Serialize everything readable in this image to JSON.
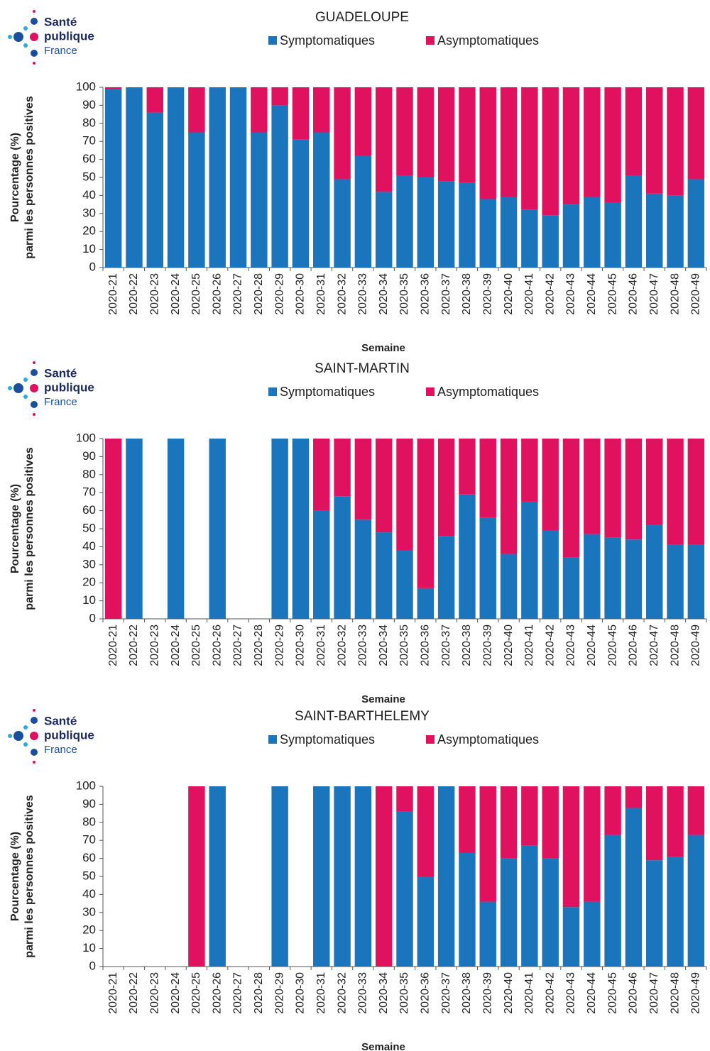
{
  "chart_data": [
    {
      "type": "bar",
      "stacked": true,
      "title": "GUADELOUPE",
      "logo": [
        "Santé",
        "publique",
        "France"
      ],
      "y_label": [
        "Pourcentage (%)",
        "parmi les  personnes positives"
      ],
      "x_label": "Semaine",
      "categories": [
        "2020-21",
        "2020-22",
        "2020-23",
        "2020-24",
        "2020-25",
        "2020-26",
        "2020-27",
        "2020-28",
        "2020-29",
        "2020-30",
        "2020-31",
        "2020-32",
        "2020-33",
        "2020-34",
        "2020-35",
        "2020-36",
        "2020-37",
        "2020-38",
        "2020-39",
        "2020-40",
        "2020-41",
        "2020-42",
        "2020-43",
        "2020-44",
        "2020-45",
        "2020-46",
        "2020-47",
        "2020-48",
        "2020-49"
      ],
      "series": [
        {
          "name": "Symptomatiques",
          "color": "#1b75bc",
          "values": [
            99,
            100,
            86,
            100,
            75,
            100,
            100,
            75,
            90,
            71,
            75,
            49,
            62,
            42,
            51,
            50,
            48,
            47,
            38,
            39,
            32,
            29,
            35,
            39,
            36,
            51,
            41,
            40,
            49
          ]
        },
        {
          "name": "Asymptomatiques",
          "color": "#e0115f",
          "values": [
            1,
            0,
            14,
            0,
            25,
            0,
            0,
            25,
            10,
            29,
            25,
            51,
            38,
            58,
            49,
            50,
            52,
            53,
            62,
            61,
            68,
            71,
            65,
            61,
            64,
            49,
            59,
            60,
            51
          ]
        }
      ],
      "ylim": [
        0,
        100
      ],
      "yticks": [
        0,
        10,
        20,
        30,
        40,
        50,
        60,
        70,
        80,
        90,
        100
      ],
      "grid": false
    },
    {
      "type": "bar",
      "stacked": true,
      "title": "SAINT-MARTIN",
      "logo": [
        "Santé",
        "publique",
        "France"
      ],
      "y_label": [
        "Pourcentage (%)",
        "parmi les  personnes positives"
      ],
      "x_label": "Semaine",
      "categories": [
        "2020-21",
        "2020-22",
        "2020-23",
        "2020-24",
        "2020-25",
        "2020-26",
        "2020-27",
        "2020-28",
        "2020-29",
        "2020-30",
        "2020-31",
        "2020-32",
        "2020-33",
        "2020-34",
        "2020-35",
        "2020-36",
        "2020-37",
        "2020-38",
        "2020-39",
        "2020-40",
        "2020-41",
        "2020-42",
        "2020-43",
        "2020-44",
        "2020-45",
        "2020-46",
        "2020-47",
        "2020-48",
        "2020-49"
      ],
      "series": [
        {
          "name": "Symptomatiques",
          "color": "#1b75bc",
          "values": [
            0,
            100,
            null,
            100,
            null,
            100,
            null,
            null,
            100,
            100,
            60,
            68,
            55,
            48,
            38,
            17,
            46,
            69,
            56,
            36,
            65,
            49,
            34,
            47,
            45,
            44,
            52,
            41,
            41
          ]
        },
        {
          "name": "Asymptomatiques",
          "color": "#e0115f",
          "values": [
            100,
            0,
            null,
            0,
            null,
            0,
            null,
            null,
            0,
            0,
            40,
            32,
            45,
            52,
            62,
            83,
            54,
            31,
            44,
            64,
            35,
            51,
            66,
            53,
            55,
            56,
            48,
            59,
            59
          ]
        }
      ],
      "ylim": [
        0,
        100
      ],
      "yticks": [
        0,
        10,
        20,
        30,
        40,
        50,
        60,
        70,
        80,
        90,
        100
      ],
      "grid": false
    },
    {
      "type": "bar",
      "stacked": true,
      "title": "SAINT-BARTHELEMY",
      "logo": [
        "Santé",
        "publique",
        "France"
      ],
      "y_label": [
        "Pourcentage (%)",
        "parmi les  personnes positives"
      ],
      "x_label": "Semaine",
      "categories": [
        "2020-21",
        "2020-22",
        "2020-23",
        "2020-24",
        "2020-25",
        "2020-26",
        "2020-27",
        "2020-28",
        "2020-29",
        "2020-30",
        "2020-31",
        "2020-32",
        "2020-33",
        "2020-34",
        "2020-35",
        "2020-36",
        "2020-37",
        "2020-38",
        "2020-39",
        "2020-40",
        "2020-41",
        "2020-42",
        "2020-43",
        "2020-44",
        "2020-45",
        "2020-46",
        "2020-47",
        "2020-48",
        "2020-49"
      ],
      "series": [
        {
          "name": "Symptomatiques",
          "color": "#1b75bc",
          "values": [
            null,
            null,
            null,
            null,
            0,
            100,
            null,
            null,
            100,
            null,
            100,
            100,
            100,
            0,
            86,
            50,
            100,
            63,
            36,
            60,
            67,
            60,
            33,
            36,
            73,
            88,
            59,
            61,
            73
          ]
        },
        {
          "name": "Asymptomatiques",
          "color": "#e0115f",
          "values": [
            null,
            null,
            null,
            null,
            100,
            0,
            null,
            null,
            0,
            null,
            0,
            0,
            0,
            100,
            14,
            50,
            0,
            37,
            64,
            40,
            33,
            40,
            67,
            64,
            27,
            12,
            41,
            39,
            27
          ]
        }
      ],
      "ylim": [
        0,
        100
      ],
      "yticks": [
        0,
        10,
        20,
        30,
        40,
        50,
        60,
        70,
        80,
        90,
        100
      ],
      "grid": false
    }
  ]
}
